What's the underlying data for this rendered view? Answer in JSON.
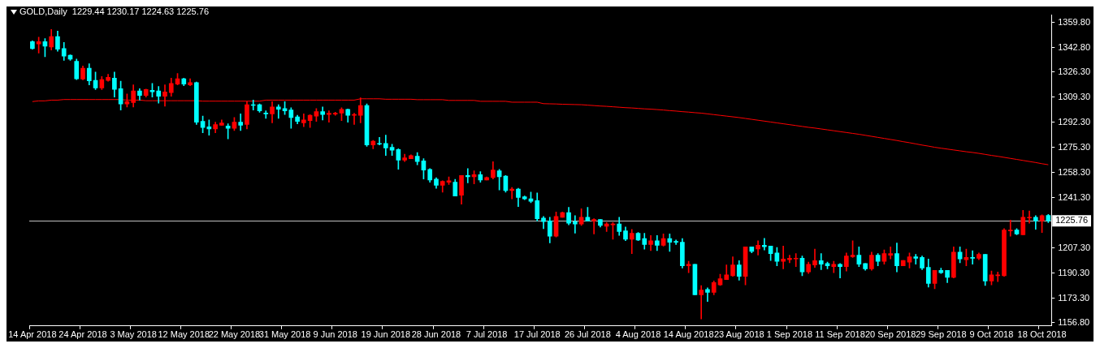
{
  "chart_data": {
    "type": "candlestick",
    "title": "GOLD,Daily  1229.44 1230.17 1224.63 1225.76",
    "categories": [
      "14 Apr 2018",
      null,
      null,
      null,
      null,
      null,
      null,
      null,
      "24 Apr 2018",
      null,
      null,
      null,
      null,
      null,
      null,
      null,
      "3 May 2018",
      null,
      null,
      null,
      null,
      null,
      null,
      null,
      "12 May 2018",
      null,
      null,
      null,
      null,
      null,
      null,
      null,
      "22 May 2018",
      null,
      null,
      null,
      null,
      null,
      null,
      null,
      "31 May 2018",
      null,
      null,
      null,
      null,
      null,
      null,
      null,
      "9 Jun 2018",
      null,
      null,
      null,
      null,
      null,
      null,
      null,
      "19 Jun 2018",
      null,
      null,
      null,
      null,
      null,
      null,
      null,
      "28 Jun 2018",
      null,
      null,
      null,
      null,
      null,
      null,
      null,
      "7 Jul 2018",
      null,
      null,
      null,
      null,
      null,
      null,
      null,
      "17 Jul 2018",
      null,
      null,
      null,
      null,
      null,
      null,
      null,
      "26 Jul 2018",
      null,
      null,
      null,
      null,
      null,
      null,
      null,
      "4 Aug 2018",
      null,
      null,
      null,
      null,
      null,
      null,
      null,
      "14 Aug 2018",
      null,
      null,
      null,
      null,
      null,
      null,
      null,
      "23 Aug 2018",
      null,
      null,
      null,
      null,
      null,
      null,
      null,
      "1 Sep 2018",
      null,
      null,
      null,
      null,
      null,
      null,
      null,
      "11 Sep 2018",
      null,
      null,
      null,
      null,
      null,
      null,
      null,
      "20 Sep 2018",
      null,
      null,
      null,
      null,
      null,
      null,
      null,
      "29 Sep 2018",
      null,
      null,
      null,
      null,
      null,
      null,
      null,
      "9 Oct 2018",
      null,
      null,
      null,
      null,
      null,
      null,
      null,
      "18 Oct 2018",
      null
    ],
    "ohlc": [
      [
        1347.0,
        1347.5,
        1341.8,
        1342.2
      ],
      [
        1345.4,
        1350.0,
        1339.2,
        1347.0
      ],
      [
        1347.0,
        1349.0,
        1336.7,
        1343.9
      ],
      [
        1343.3,
        1355.2,
        1341.3,
        1350.4
      ],
      [
        1350.4,
        1354.1,
        1340.4,
        1341.8
      ],
      [
        1342.3,
        1346.4,
        1334.3,
        1337.2
      ],
      [
        1337.7,
        1338.0,
        1334.3,
        1335.1
      ],
      [
        1333.6,
        1335.1,
        1321.3,
        1321.8
      ],
      [
        1321.6,
        1330.5,
        1321.1,
        1329.0
      ],
      [
        1329.0,
        1332.0,
        1317.7,
        1320.4
      ],
      [
        1320.7,
        1326.4,
        1314.6,
        1315.6
      ],
      [
        1315.6,
        1323.3,
        1314.6,
        1321.3
      ],
      [
        1320.7,
        1324.9,
        1320.2,
        1322.8
      ],
      [
        1322.3,
        1326.4,
        1309.4,
        1314.7
      ],
      [
        1315.1,
        1320.2,
        1300.7,
        1304.8
      ],
      [
        1304.8,
        1311.5,
        1302.8,
        1306.4
      ],
      [
        1305.8,
        1317.7,
        1302.8,
        1313.6
      ],
      [
        1313.6,
        1315.1,
        1307.4,
        1310.5
      ],
      [
        1310.5,
        1314.8,
        1309.4,
        1314.6
      ],
      [
        1314.1,
        1318.7,
        1309.4,
        1313.0
      ],
      [
        1313.6,
        1316.6,
        1305.3,
        1310.0
      ],
      [
        1310.0,
        1317.7,
        1303.3,
        1313.0
      ],
      [
        1312.5,
        1322.3,
        1310.0,
        1318.7
      ],
      [
        1318.2,
        1325.4,
        1317.7,
        1321.8
      ],
      [
        1321.8,
        1322.3,
        1317.1,
        1318.2
      ],
      [
        1317.7,
        1321.8,
        1317.1,
        1319.2
      ],
      [
        1319.2,
        1319.7,
        1290.9,
        1292.5
      ],
      [
        1293.0,
        1296.6,
        1285.3,
        1288.9
      ],
      [
        1289.4,
        1294.0,
        1283.7,
        1287.9
      ],
      [
        1287.9,
        1292.5,
        1285.3,
        1290.9
      ],
      [
        1290.4,
        1294.0,
        1290.4,
        1292.0
      ],
      [
        1289.9,
        1291.4,
        1281.2,
        1288.4
      ],
      [
        1288.4,
        1295.6,
        1286.8,
        1292.5
      ],
      [
        1292.5,
        1298.1,
        1286.8,
        1290.4
      ],
      [
        1290.9,
        1306.4,
        1287.9,
        1304.3
      ],
      [
        1304.3,
        1307.4,
        1300.7,
        1303.8
      ],
      [
        1304.3,
        1304.8,
        1299.2,
        1300.2
      ],
      [
        1298.6,
        1300.2,
        1295.0,
        1298.1
      ],
      [
        1298.1,
        1306.4,
        1292.0,
        1302.8
      ],
      [
        1302.8,
        1304.3,
        1295.0,
        1301.2
      ],
      [
        1301.7,
        1306.4,
        1297.6,
        1300.2
      ],
      [
        1300.7,
        1302.2,
        1288.4,
        1295.6
      ],
      [
        1296.1,
        1297.1,
        1291.4,
        1293.0
      ],
      [
        1292.0,
        1298.1,
        1289.4,
        1294.0
      ],
      [
        1293.5,
        1297.6,
        1288.9,
        1297.1
      ],
      [
        1296.6,
        1301.7,
        1293.0,
        1299.7
      ],
      [
        1299.7,
        1302.8,
        1294.0,
        1297.6
      ],
      [
        1297.6,
        1300.2,
        1292.5,
        1298.6
      ],
      [
        1298.0,
        1299.2,
        1297.1,
        1298.5
      ],
      [
        1298.6,
        1302.2,
        1293.5,
        1301.2
      ],
      [
        1301.2,
        1301.4,
        1292.5,
        1297.1
      ],
      [
        1297.1,
        1298.6,
        1290.9,
        1297.6
      ],
      [
        1297.1,
        1308.9,
        1292.0,
        1303.8
      ],
      [
        1303.8,
        1304.8,
        1276.1,
        1277.1
      ],
      [
        1277.1,
        1280.1,
        1274.5,
        1279.6
      ],
      [
        1278.1,
        1282.2,
        1277.1,
        1277.6
      ],
      [
        1278.1,
        1283.7,
        1269.9,
        1275.0
      ],
      [
        1275.5,
        1277.6,
        1269.9,
        1273.5
      ],
      [
        1274.0,
        1274.5,
        1260.6,
        1266.8
      ],
      [
        1266.8,
        1270.9,
        1265.8,
        1268.3
      ],
      [
        1267.8,
        1270.4,
        1267.8,
        1269.9
      ],
      [
        1269.4,
        1271.9,
        1263.7,
        1265.8
      ],
      [
        1266.3,
        1267.8,
        1254.0,
        1260.1
      ],
      [
        1260.6,
        1261.1,
        1251.9,
        1253.4
      ],
      [
        1254.0,
        1254.9,
        1247.8,
        1249.8
      ],
      [
        1249.8,
        1252.9,
        1245.2,
        1252.4
      ],
      [
        1251.9,
        1255.5,
        1250.3,
        1252.9
      ],
      [
        1251.9,
        1253.9,
        1242.6,
        1242.6
      ],
      [
        1243.1,
        1256.5,
        1237.0,
        1256.5
      ],
      [
        1256.5,
        1261.1,
        1251.4,
        1255.5
      ],
      [
        1255.5,
        1259.6,
        1250.8,
        1257.0
      ],
      [
        1257.0,
        1259.1,
        1251.9,
        1253.4
      ],
      [
        1253.4,
        1255.5,
        1253.4,
        1255.0
      ],
      [
        1255.0,
        1265.8,
        1254.0,
        1260.1
      ],
      [
        1259.6,
        1260.6,
        1246.7,
        1255.5
      ],
      [
        1256.0,
        1256.5,
        1245.2,
        1246.2
      ],
      [
        1246.2,
        1248.3,
        1240.6,
        1247.2
      ],
      [
        1247.2,
        1247.8,
        1235.4,
        1241.6
      ],
      [
        1242.1,
        1242.6,
        1240.1,
        1240.6
      ],
      [
        1240.6,
        1245.2,
        1238.0,
        1239.0
      ],
      [
        1239.5,
        1244.7,
        1225.7,
        1227.2
      ],
      [
        1227.7,
        1228.7,
        1220.5,
        1225.2
      ],
      [
        1225.7,
        1228.2,
        1210.8,
        1215.4
      ],
      [
        1215.4,
        1231.8,
        1214.9,
        1228.8
      ],
      [
        1228.2,
        1231.8,
        1228.2,
        1231.3
      ],
      [
        1231.3,
        1234.9,
        1223.1,
        1224.1
      ],
      [
        1225.2,
        1229.3,
        1217.4,
        1223.6
      ],
      [
        1223.6,
        1233.9,
        1222.6,
        1228.2
      ],
      [
        1228.2,
        1234.9,
        1225.7,
        1225.7
      ],
      [
        1225.7,
        1227.2,
        1216.9,
        1226.7
      ],
      [
        1226.7,
        1226.7,
        1221.6,
        1222.6
      ],
      [
        1222.1,
        1224.6,
        1218.5,
        1223.6
      ],
      [
        1223.1,
        1224.6,
        1213.3,
        1223.6
      ],
      [
        1223.6,
        1228.2,
        1215.9,
        1218.5
      ],
      [
        1219.0,
        1221.6,
        1212.3,
        1213.3
      ],
      [
        1213.3,
        1220.0,
        1203.6,
        1217.4
      ],
      [
        1217.4,
        1217.9,
        1212.3,
        1212.8
      ],
      [
        1213.8,
        1217.4,
        1206.6,
        1209.7
      ],
      [
        1209.7,
        1215.9,
        1205.6,
        1212.3
      ],
      [
        1212.3,
        1215.9,
        1205.6,
        1209.2
      ],
      [
        1209.2,
        1216.9,
        1208.7,
        1213.8
      ],
      [
        1213.8,
        1216.9,
        1205.1,
        1211.3
      ],
      [
        1211.8,
        1212.8,
        1209.7,
        1211.3
      ],
      [
        1211.3,
        1213.8,
        1193.8,
        1195.3
      ],
      [
        1195.3,
        1198.4,
        1190.7,
        1196.4
      ],
      [
        1196.4,
        1196.4,
        1175.8,
        1175.8
      ],
      [
        1175.8,
        1182.0,
        1159.4,
        1178.9
      ],
      [
        1179.4,
        1180.4,
        1171.2,
        1177.4
      ],
      [
        1177.4,
        1185.1,
        1175.8,
        1184.0
      ],
      [
        1182.5,
        1189.7,
        1182.0,
        1186.6
      ],
      [
        1186.1,
        1195.9,
        1186.1,
        1189.2
      ],
      [
        1188.7,
        1201.5,
        1188.2,
        1195.9
      ],
      [
        1195.9,
        1198.9,
        1185.6,
        1188.2
      ],
      [
        1188.2,
        1208.2,
        1182.5,
        1208.2
      ],
      [
        1208.2,
        1208.2,
        1204.1,
        1205.1
      ],
      [
        1206.7,
        1212.3,
        1202.6,
        1209.2
      ],
      [
        1209.2,
        1213.9,
        1206.1,
        1208.2
      ],
      [
        1208.7,
        1208.7,
        1198.9,
        1203.6
      ],
      [
        1204.1,
        1207.7,
        1195.4,
        1198.4
      ],
      [
        1198.4,
        1208.7,
        1193.3,
        1200.0
      ],
      [
        1199.5,
        1202.6,
        1197.4,
        1200.5
      ],
      [
        1200.0,
        1203.6,
        1194.8,
        1200.5
      ],
      [
        1200.5,
        1202.0,
        1188.7,
        1191.2
      ],
      [
        1191.2,
        1197.9,
        1190.2,
        1196.4
      ],
      [
        1195.9,
        1206.7,
        1194.3,
        1198.9
      ],
      [
        1198.9,
        1203.6,
        1192.8,
        1196.4
      ],
      [
        1196.9,
        1197.9,
        1193.3,
        1195.4
      ],
      [
        1194.8,
        1198.4,
        1190.7,
        1196.4
      ],
      [
        1196.4,
        1196.9,
        1187.1,
        1194.8
      ],
      [
        1194.8,
        1204.1,
        1191.8,
        1202.0
      ],
      [
        1201.5,
        1212.3,
        1201.0,
        1202.5
      ],
      [
        1202.5,
        1208.2,
        1194.8,
        1196.4
      ],
      [
        1196.9,
        1196.9,
        1192.3,
        1193.3
      ],
      [
        1193.3,
        1204.6,
        1192.3,
        1202.5
      ],
      [
        1202.5,
        1203.6,
        1195.4,
        1198.4
      ],
      [
        1198.4,
        1206.1,
        1196.4,
        1203.6
      ],
      [
        1202.5,
        1208.2,
        1200.0,
        1203.6
      ],
      [
        1203.6,
        1210.8,
        1191.2,
        1195.4
      ],
      [
        1195.4,
        1199.0,
        1195.4,
        1199.0
      ],
      [
        1197.9,
        1204.1,
        1193.8,
        1201.5
      ],
      [
        1201.5,
        1203.1,
        1196.4,
        1200.5
      ],
      [
        1201.0,
        1202.0,
        1192.8,
        1193.8
      ],
      [
        1194.3,
        1199.9,
        1180.9,
        1183.5
      ],
      [
        1183.5,
        1192.3,
        1179.9,
        1192.3
      ],
      [
        1192.3,
        1193.8,
        1190.2,
        1190.7
      ],
      [
        1192.3,
        1192.3,
        1184.0,
        1187.6
      ],
      [
        1187.6,
        1208.2,
        1187.1,
        1204.6
      ],
      [
        1204.6,
        1208.2,
        1197.4,
        1200.0
      ],
      [
        1199.5,
        1206.7,
        1195.4,
        1201.0
      ],
      [
        1201.0,
        1205.6,
        1196.4,
        1200.5
      ],
      [
        1200.5,
        1204.1,
        1199.5,
        1203.1
      ],
      [
        1203.1,
        1203.1,
        1182.0,
        1185.1
      ],
      [
        1185.1,
        1191.8,
        1182.5,
        1189.2
      ],
      [
        1188.7,
        1191.2,
        1184.6,
        1189.2
      ],
      [
        1188.7,
        1220.5,
        1188.2,
        1219.5
      ],
      [
        1219.0,
        1226.2,
        1215.4,
        1219.5
      ],
      [
        1219.5,
        1220.5,
        1216.4,
        1216.9
      ],
      [
        1216.4,
        1232.9,
        1216.4,
        1228.2
      ],
      [
        1227.7,
        1232.4,
        1224.1,
        1228.2
      ],
      [
        1228.2,
        1229.3,
        1220.0,
        1225.7
      ],
      [
        1225.7,
        1229.8,
        1217.9,
        1229.3
      ],
      [
        1229.44,
        1230.17,
        1224.63,
        1225.76
      ]
    ],
    "colors": [
      "#00ffff",
      "#ff0000",
      "#00ffff",
      "#ff0000",
      "#00ffff",
      "#00ffff",
      "#00ffff",
      "#00ffff",
      "#ff0000",
      "#00ffff",
      "#00ffff",
      "#ff0000",
      "#ff0000",
      "#00ffff",
      "#00ffff",
      "#ff0000",
      "#ff0000",
      "#00ffff",
      "#ff0000",
      "#00ffff",
      "#00ffff",
      "#ff0000",
      "#ff0000",
      "#ff0000",
      "#00ffff",
      "#ff0000",
      "#00ffff",
      "#00ffff",
      "#00ffff",
      "#ff0000",
      "#ff0000",
      "#00ffff",
      "#ff0000",
      "#00ffff",
      "#ff0000",
      "#00ffff",
      "#00ffff",
      "#00ffff",
      "#ff0000",
      "#00ffff",
      "#00ffff",
      "#00ffff",
      "#00ffff",
      "#ff0000",
      "#ff0000",
      "#ff0000",
      "#00ffff",
      "#ff0000",
      "#ff0000",
      "#ff0000",
      "#00ffff",
      "#ff0000",
      "#ff0000",
      "#00ffff",
      "#ff0000",
      "#00ffff",
      "#00ffff",
      "#00ffff",
      "#00ffff",
      "#ff0000",
      "#ff0000",
      "#00ffff",
      "#00ffff",
      "#00ffff",
      "#00ffff",
      "#ff0000",
      "#ff0000",
      "#00ffff",
      "#ff0000",
      "#00ffff",
      "#ff0000",
      "#00ffff",
      "#ff0000",
      "#ff0000",
      "#00ffff",
      "#00ffff",
      "#ff0000",
      "#00ffff",
      "#00ffff",
      "#00ffff",
      "#00ffff",
      "#00ffff",
      "#00ffff",
      "#ff0000",
      "#ff0000",
      "#00ffff",
      "#00ffff",
      "#ff0000",
      "#00ffff",
      "#ff0000",
      "#00ffff",
      "#ff0000",
      "#ff0000",
      "#00ffff",
      "#00ffff",
      "#ff0000",
      "#00ffff",
      "#00ffff",
      "#ff0000",
      "#00ffff",
      "#ff0000",
      "#00ffff",
      "#00ffff",
      "#00ffff",
      "#ff0000",
      "#00ffff",
      "#ff0000",
      "#00ffff",
      "#ff0000",
      "#ff0000",
      "#ff0000",
      "#ff0000",
      "#00ffff",
      "#ff0000",
      "#00ffff",
      "#ff0000",
      "#00ffff",
      "#00ffff",
      "#00ffff",
      "#ff0000",
      "#ff0000",
      "#ff0000",
      "#00ffff",
      "#ff0000",
      "#ff0000",
      "#00ffff",
      "#00ffff",
      "#ff0000",
      "#00ffff",
      "#ff0000",
      "#ff0000",
      "#00ffff",
      "#00ffff",
      "#ff0000",
      "#00ffff",
      "#ff0000",
      "#ff0000",
      "#00ffff",
      "#ff0000",
      "#ff0000",
      "#00ffff",
      "#00ffff",
      "#00ffff",
      "#ff0000",
      "#00ffff",
      "#00ffff",
      "#ff0000",
      "#00ffff",
      "#ff0000",
      "#00ffff",
      "#ff0000",
      "#00ffff",
      "#ff0000",
      "#ff0000",
      "#ff0000",
      "#ff0000",
      "#00ffff",
      "#ff0000",
      "#ff0000",
      "#00ffff",
      "#ff0000",
      "#00ffff"
    ],
    "series": [
      {
        "type": "line",
        "color": "#ff0000",
        "values": [
          1306.4,
          1306.9,
          1306.9,
          1307.4,
          1307.4,
          1307.8,
          1307.8,
          1307.8,
          1307.8,
          1307.8,
          1307.8,
          1307.8,
          1307.8,
          1307.8,
          1307.8,
          1307.4,
          1307.4,
          1307.4,
          1307.0,
          1307.0,
          1307.0,
          1307.0,
          1307.0,
          1307.0,
          1307.0,
          1307.0,
          1307.0,
          1306.7,
          1306.7,
          1306.7,
          1306.7,
          1306.7,
          1306.7,
          1306.7,
          1306.7,
          1306.7,
          1306.7,
          1307.4,
          1307.4,
          1307.4,
          1307.4,
          1307.4,
          1307.4,
          1307.4,
          1307.4,
          1307.4,
          1307.4,
          1307.4,
          1307.4,
          1307.4,
          1307.4,
          1307.4,
          1308.3,
          1308.3,
          1308.3,
          1308.3,
          1308.0,
          1308.0,
          1308.0,
          1308.0,
          1308.0,
          1307.7,
          1307.7,
          1307.7,
          1307.7,
          1307.7,
          1307.2,
          1307.2,
          1307.2,
          1307.2,
          1307.2,
          1306.6,
          1306.6,
          1306.6,
          1306.6,
          1306.6,
          1306.0,
          1306.0,
          1306.0,
          1306.0,
          1306.0,
          1305.0,
          1304.9,
          1304.8,
          1304.6,
          1304.5,
          1304.4,
          1304.3,
          1304.0,
          1303.7,
          1303.4,
          1303.2,
          1302.9,
          1302.6,
          1302.3,
          1302.1,
          1301.8,
          1301.5,
          1301.3,
          1301.0,
          1300.7,
          1300.3,
          1300.0,
          1299.6,
          1299.3,
          1298.9,
          1298.6,
          1298.1,
          1297.6,
          1297.1,
          1296.6,
          1296.1,
          1295.6,
          1295.0,
          1294.4,
          1293.8,
          1293.2,
          1292.6,
          1292.0,
          1291.4,
          1290.8,
          1290.2,
          1289.6,
          1289.0,
          1288.5,
          1287.9,
          1287.3,
          1286.7,
          1286.1,
          1285.5,
          1284.9,
          1284.3,
          1283.6,
          1282.9,
          1282.2,
          1281.5,
          1280.8,
          1280.1,
          1279.3,
          1278.6,
          1277.8,
          1277.0,
          1276.3,
          1275.5,
          1274.9,
          1274.3,
          1273.7,
          1273.1,
          1272.5,
          1272.0,
          1271.4,
          1270.7,
          1270.0,
          1269.4,
          1268.7,
          1268.0,
          1267.3,
          1266.6,
          1265.9,
          1265.2,
          1264.4,
          1263.7
        ]
      }
    ],
    "ylim": [
      1154.7,
      1364.9
    ],
    "yticks": [
      {
        "value": 1359.8,
        "label": "1359.80"
      },
      {
        "value": 1342.8,
        "label": "1342.80"
      },
      {
        "value": 1326.3,
        "label": "1326.30"
      },
      {
        "value": 1309.3,
        "label": "1309.30"
      },
      {
        "value": 1292.3,
        "label": "1292.30"
      },
      {
        "value": 1275.3,
        "label": "1275.30"
      },
      {
        "value": 1258.3,
        "label": "1258.30"
      },
      {
        "value": 1241.3,
        "label": "1241.30"
      },
      {
        "value": 1207.3,
        "label": "1207.30"
      },
      {
        "value": 1190.3,
        "label": "1190.30"
      },
      {
        "value": 1173.3,
        "label": "1173.30"
      },
      {
        "value": 1156.8,
        "label": "1156.80"
      }
    ],
    "ref_lines": [
      {
        "axis": "y",
        "value": 1225.76,
        "label": "1225.76",
        "color": "#c0c0c0"
      }
    ]
  }
}
